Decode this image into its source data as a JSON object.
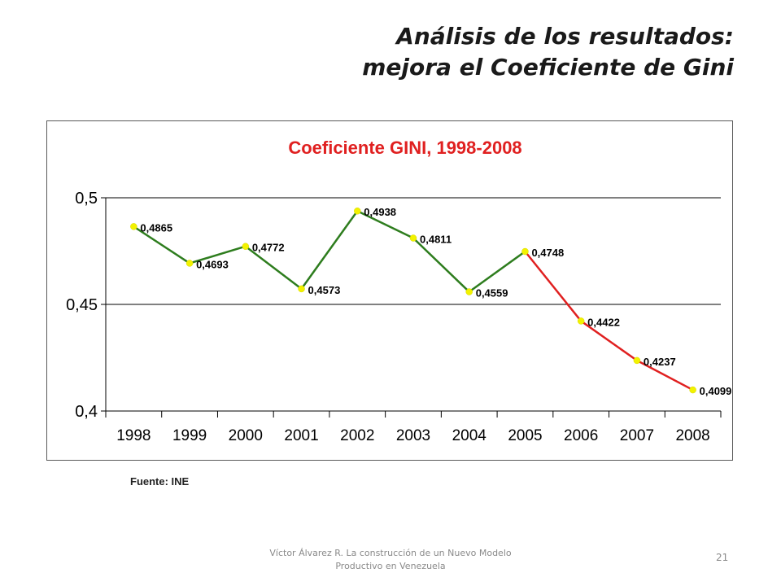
{
  "slide": {
    "title_line1": "Análisis de los resultados:",
    "title_line2": "mejora el Coeficiente de Gini",
    "source": "Fuente: INE",
    "footer_line1": "Víctor Álvarez R. La construcción de un Nuevo Modelo",
    "footer_line2": "Productivo en Venezuela",
    "page_number": "21"
  },
  "chart_data": {
    "type": "line",
    "title": "Coeficiente GINI, 1998-2008",
    "xlabel": "",
    "ylabel": "",
    "categories": [
      "1998",
      "1999",
      "2000",
      "2001",
      "2002",
      "2003",
      "2004",
      "2005",
      "2006",
      "2007",
      "2008"
    ],
    "values": [
      0.4865,
      0.4693,
      0.4772,
      0.4573,
      0.4938,
      0.4811,
      0.4559,
      0.4748,
      0.4422,
      0.4237,
      0.4099
    ],
    "data_labels": [
      "0,4865",
      "0,4693",
      "0,4772",
      "0,4573",
      "0,4938",
      "0,4811",
      "0,4559",
      "0,4748",
      "0,4422",
      "0,4237",
      "0,4099"
    ],
    "yticks": [
      0.4,
      0.45,
      0.5
    ],
    "ytick_labels": [
      "0,4",
      "0,45",
      "0,5"
    ],
    "ylim": [
      0.4,
      0.5
    ],
    "grid": true,
    "legend": "none",
    "segments": [
      {
        "from": "1998",
        "to": "2005",
        "color": "#2e7d1e"
      },
      {
        "from": "2005",
        "to": "2008",
        "color": "#e02020"
      }
    ],
    "marker_color": "#f2f200",
    "title_color": "#e02020"
  }
}
